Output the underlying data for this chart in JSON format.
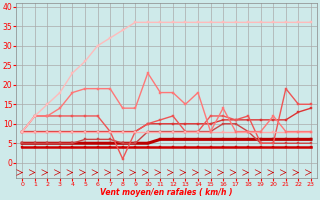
{
  "xlabel": "Vent moyen/en rafales ( km/h )",
  "x": [
    0,
    1,
    2,
    3,
    4,
    5,
    6,
    7,
    8,
    9,
    10,
    11,
    12,
    13,
    14,
    15,
    16,
    17,
    18,
    19,
    20,
    21,
    22,
    23
  ],
  "lines": [
    {
      "y": [
        4,
        4,
        4,
        4,
        4,
        4,
        4,
        4,
        4,
        4,
        4,
        4,
        4,
        4,
        4,
        4,
        4,
        4,
        4,
        4,
        4,
        4,
        4,
        4
      ],
      "color": "#cc0000",
      "lw": 1.8,
      "marker": "s",
      "ms": 2.0
    },
    {
      "y": [
        5,
        5,
        5,
        5,
        5,
        5,
        5,
        5,
        5,
        5,
        5,
        6,
        6,
        6,
        6,
        6,
        6,
        6,
        6,
        6,
        6,
        6,
        6,
        6
      ],
      "color": "#bb0000",
      "lw": 2.2,
      "marker": "s",
      "ms": 2.0
    },
    {
      "y": [
        8,
        8,
        8,
        8,
        8,
        8,
        8,
        8,
        8,
        8,
        10,
        10,
        10,
        10,
        10,
        10,
        11,
        11,
        11,
        11,
        11,
        11,
        13,
        14
      ],
      "color": "#dd3333",
      "lw": 1.0,
      "marker": "s",
      "ms": 2.0
    },
    {
      "y": [
        5,
        5,
        5,
        5,
        5,
        6,
        6,
        6,
        5,
        5,
        8,
        8,
        8,
        8,
        8,
        8,
        10,
        10,
        8,
        5,
        5,
        5,
        5,
        5
      ],
      "color": "#cc4444",
      "lw": 1.0,
      "marker": "s",
      "ms": 2.0
    },
    {
      "y": [
        8,
        12,
        12,
        12,
        12,
        12,
        12,
        8,
        1,
        8,
        10,
        11,
        12,
        8,
        8,
        12,
        12,
        11,
        12,
        5,
        5,
        19,
        15,
        15
      ],
      "color": "#ee5555",
      "lw": 1.0,
      "marker": "s",
      "ms": 2.0
    },
    {
      "y": [
        8,
        8,
        8,
        8,
        8,
        8,
        8,
        8,
        8,
        8,
        8,
        8,
        8,
        8,
        8,
        8,
        8,
        8,
        8,
        8,
        8,
        8,
        8,
        8
      ],
      "color": "#ffaaaa",
      "lw": 1.0,
      "marker": "s",
      "ms": 2.0
    },
    {
      "y": [
        8,
        12,
        12,
        14,
        18,
        19,
        19,
        19,
        14,
        14,
        23,
        18,
        18,
        15,
        18,
        8,
        14,
        8,
        8,
        8,
        12,
        8,
        8,
        8
      ],
      "color": "#ff7777",
      "lw": 1.0,
      "marker": "s",
      "ms": 2.0
    },
    {
      "y": [
        8,
        12,
        15,
        18,
        23,
        26,
        30,
        32,
        34,
        36,
        36,
        36,
        36,
        36,
        36,
        36,
        36,
        36,
        36,
        36,
        36,
        36,
        36,
        36
      ],
      "color": "#ffbbbb",
      "lw": 1.0,
      "marker": "s",
      "ms": 2.0
    }
  ],
  "wind_arrows": [
    0,
    1,
    2,
    3,
    4,
    5,
    6,
    7,
    8,
    9,
    10,
    11,
    12,
    13,
    14,
    15,
    16,
    17,
    18,
    19,
    20,
    21,
    22,
    23
  ],
  "background_color": "#ceeaea",
  "grid_color": "#aaaaaa",
  "ylim": [
    -4,
    41
  ],
  "xlim": [
    -0.5,
    23.5
  ],
  "yticks": [
    0,
    5,
    10,
    15,
    20,
    25,
    30,
    35,
    40
  ],
  "xticks": [
    0,
    1,
    2,
    3,
    4,
    5,
    6,
    7,
    8,
    9,
    10,
    11,
    12,
    13,
    14,
    15,
    16,
    17,
    18,
    19,
    20,
    21,
    22,
    23
  ]
}
